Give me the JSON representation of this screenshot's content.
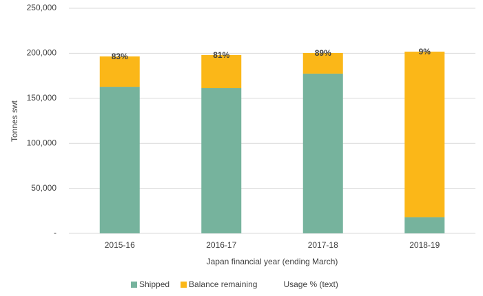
{
  "chart_data": {
    "type": "stacked_bar",
    "categories": [
      "2015-16",
      "2016-17",
      "2017-18",
      "2018-19"
    ],
    "series": [
      {
        "name": "Shipped",
        "color": "#76b39d",
        "values": [
          162800,
          161300,
          177400,
          18000
        ]
      },
      {
        "name": "Balance remaining",
        "color": "#fbb718",
        "values": [
          33700,
          36700,
          22900,
          183800
        ]
      },
      {
        "name": "Usage % (text)",
        "values": [
          83,
          81,
          89,
          9
        ],
        "value_labels": [
          "83%",
          "81%",
          "89%",
          "9%"
        ]
      }
    ],
    "ylabel": "Tonnes swt",
    "xlabel": "Japan financial year (ending March)",
    "ylim": [
      0,
      250000
    ],
    "yticks": [
      {
        "value": 0,
        "label": "-"
      },
      {
        "value": 50000,
        "label": "50,000"
      },
      {
        "value": 100000,
        "label": "100,000"
      },
      {
        "value": 150000,
        "label": "150,000"
      },
      {
        "value": 200000,
        "label": "200,000"
      },
      {
        "value": 250000,
        "label": "250,000"
      }
    ],
    "grid": true,
    "legend": "bottom"
  }
}
